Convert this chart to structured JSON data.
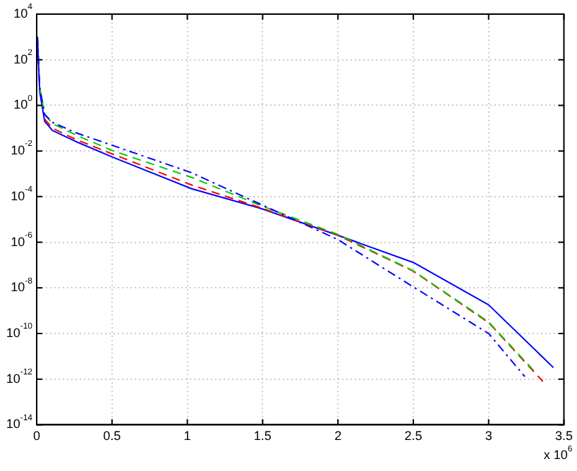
{
  "chart_data": {
    "type": "line",
    "annotations": [
      "x 10$^{6}$"
    ],
    "series": [
      {
        "color": "#0000ff",
        "line_style": "solid",
        "x": [
          0.005,
          0.02,
          0.053,
          0.105,
          0.26,
          0.51,
          1.03,
          1.49,
          2.0,
          2.5,
          3.0,
          3.43
        ],
        "values": [
          1000.0,
          4,
          0.2,
          0.079,
          0.026,
          0.0052,
          0.00022,
          3e-05,
          2e-06,
          1.3e-07,
          1.8e-09,
          3.2e-12
        ]
      },
      {
        "color": "#ff0000",
        "line_style": "dashed",
        "x": [
          0.053,
          0.105,
          0.26,
          0.51,
          1.03,
          1.49,
          2.0,
          2.5,
          3.0,
          3.36
        ],
        "values": [
          0.25,
          0.1,
          0.032,
          0.0071,
          0.00032,
          3.2e-05,
          2e-06,
          5.4e-08,
          3e-10,
          7.9e-13
        ]
      },
      {
        "color": "#00cc00",
        "line_style": "dashed",
        "x": [
          0.02,
          0.053,
          0.105,
          0.26,
          0.51,
          1.03,
          1.49,
          2.0,
          2.5,
          3.0,
          3.31
        ],
        "values": [
          6.3,
          0.4,
          0.16,
          0.05,
          0.01,
          0.00069,
          4e-05,
          2.2e-06,
          5.6e-08,
          3.2e-10,
          2e-12
        ]
      },
      {
        "color": "#0000ff",
        "line_style": "dotted",
        "x": [
          0.005,
          0.02,
          0.053,
          0.105,
          0.26,
          0.51,
          1.03,
          1.49,
          2.0,
          2.5,
          3.0,
          3.24
        ],
        "values": [
          1000.0,
          6.3,
          0.4,
          0.18,
          0.063,
          0.017,
          0.0011,
          4.5e-05,
          1.3e-06,
          1.1e-08,
          1e-10,
          1.3e-12
        ]
      }
    ],
    "xlim": [
      0,
      3.5
    ],
    "xticks": [
      0,
      0.5,
      1,
      1.5,
      2,
      2.5,
      3,
      3.5
    ],
    "ylim": [
      1e-14,
      10000.0
    ],
    "yticks": [
      {
        "value": 1e-14,
        "label": "10$^{-14}$"
      },
      {
        "value": 1e-12,
        "label": "10$^{-12}$"
      },
      {
        "value": 1e-10,
        "label": "10$^{-10}$"
      },
      {
        "value": 1e-08,
        "label": "10$^{-8}$"
      },
      {
        "value": 1e-06,
        "label": "10$^{-6}$"
      },
      {
        "value": 0.0001,
        "label": "10$^{-4}$"
      },
      {
        "value": 0.01,
        "label": "10$^{-2}$"
      },
      {
        "value": 1,
        "label": "10$^{0}$"
      },
      {
        "value": 100,
        "label": "10$^{2}$"
      },
      {
        "value": 10000,
        "label": "10$^{4}$"
      }
    ],
    "log": "y",
    "grid": true,
    "legend": false,
    "marker": "none"
  }
}
